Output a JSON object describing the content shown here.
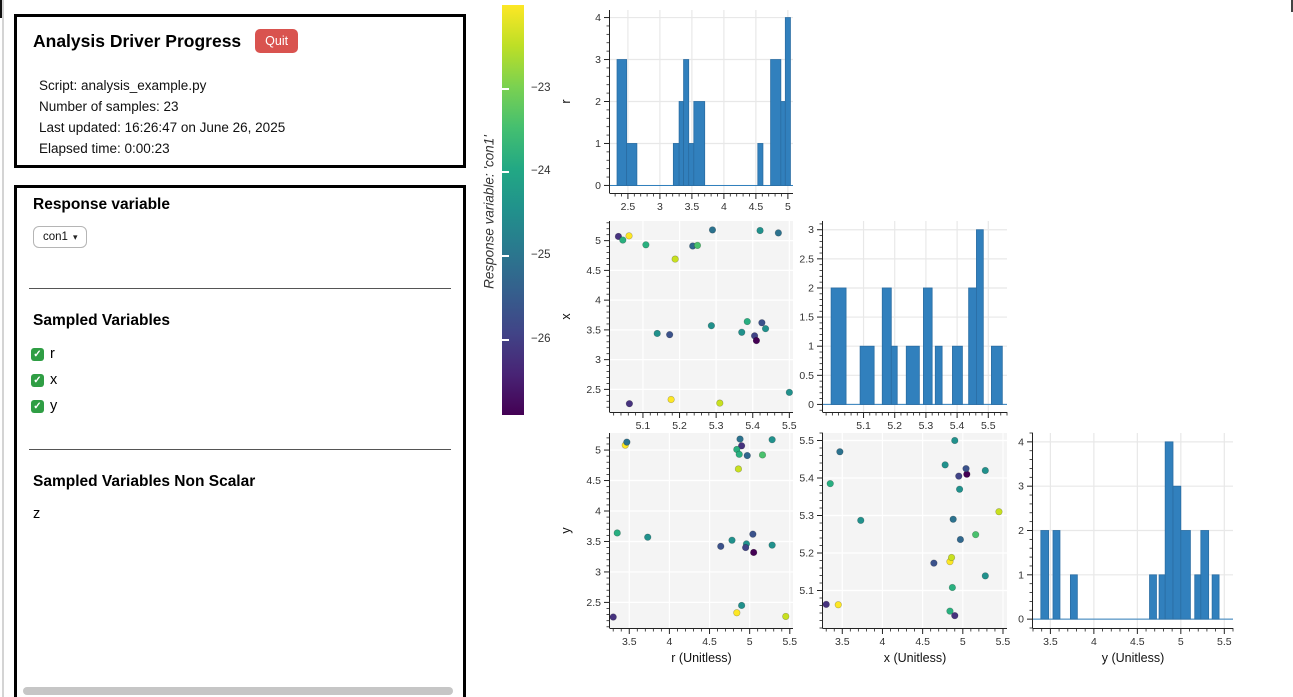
{
  "progress_panel": {
    "title": "Analysis Driver Progress",
    "quit_label": "Quit",
    "info_lines": [
      "Script: analysis_example.py",
      "Number of samples: 23",
      "Last updated: 16:26:47 on June 26, 2025",
      "Elapsed time: 0:00:23"
    ]
  },
  "controls_panel": {
    "response_variable_heading": "Response variable",
    "response_variable_selected": "con1",
    "sampled_variables_heading": "Sampled Variables",
    "sampled_variables": [
      {
        "label": "r",
        "checked": true
      },
      {
        "label": "x",
        "checked": true
      },
      {
        "label": "y",
        "checked": true
      }
    ],
    "non_scalar_heading": "Sampled Variables Non Scalar",
    "non_scalar_variables": [
      "z"
    ]
  },
  "colorbar": {
    "title": "Response variable: 'con1'",
    "colormap": "viridis",
    "vmax": -22.0,
    "vmin": -26.9,
    "tick_values": [
      -23,
      -24,
      -25,
      -26
    ],
    "tick_labels": [
      "−23",
      "−24",
      "−25",
      "−26"
    ],
    "stops": [
      "#fde725",
      "#bddf26",
      "#7ad151",
      "#44bf70",
      "#22a884",
      "#21918c",
      "#2a788e",
      "#355f8d",
      "#414487",
      "#482475",
      "#440154"
    ]
  },
  "style": {
    "bar_fill": "#3180bd",
    "bar_edge": "#2a6da3",
    "hist_bg": "#ffffff",
    "hist_grid": "#e8e8e8",
    "scatter_bg": "#f4f4f4",
    "scatter_grid": "#ffffff",
    "axis_color": "#222222",
    "tick_label_color": "#333333",
    "accent_red": "#d9534f",
    "checkbox_green": "#2f9e44"
  },
  "samples": [
    {
      "r": 5.07,
      "x": 5.033,
      "y": 4.9,
      "con1": -26.2,
      "color": "#46327e"
    },
    {
      "r": 5.01,
      "x": 5.045,
      "y": 4.84,
      "con1": -23.75,
      "color": "#2ab07f"
    },
    {
      "r": 5.08,
      "x": 5.062,
      "y": 3.45,
      "con1": -22.15,
      "color": "#fde725"
    },
    {
      "r": 2.26,
      "x": 5.063,
      "y": 3.3,
      "con1": -26.2,
      "color": "#46327e"
    },
    {
      "r": 4.93,
      "x": 5.108,
      "y": 4.87,
      "con1": -23.75,
      "color": "#2ab07f"
    },
    {
      "r": 3.44,
      "x": 5.139,
      "y": 5.28,
      "con1": -24.45,
      "color": "#21918c"
    },
    {
      "r": 3.42,
      "x": 5.173,
      "y": 4.64,
      "con1": -25.65,
      "color": "#3b528b"
    },
    {
      "r": 2.33,
      "x": 5.177,
      "y": 4.84,
      "con1": -22.15,
      "color": "#fde725"
    },
    {
      "r": 4.69,
      "x": 5.188,
      "y": 4.86,
      "con1": -22.7,
      "color": "#c8e020"
    },
    {
      "r": 4.91,
      "x": 5.236,
      "y": 4.97,
      "con1": -25.3,
      "color": "#31688e"
    },
    {
      "r": 4.92,
      "x": 5.249,
      "y": 5.16,
      "con1": -23.4,
      "color": "#4ac16d"
    },
    {
      "r": 5.18,
      "x": 5.29,
      "y": 4.88,
      "con1": -25.1,
      "color": "#2c728e"
    },
    {
      "r": 3.57,
      "x": 5.287,
      "y": 3.73,
      "con1": -24.45,
      "color": "#21918c"
    },
    {
      "r": 2.27,
      "x": 5.31,
      "y": 5.45,
      "con1": -22.7,
      "color": "#c8e020"
    },
    {
      "r": 3.46,
      "x": 5.37,
      "y": 4.96,
      "con1": -24.45,
      "color": "#21918c"
    },
    {
      "r": 3.64,
      "x": 5.385,
      "y": 3.35,
      "con1": -23.8,
      "color": "#28ae80"
    },
    {
      "r": 3.4,
      "x": 5.405,
      "y": 4.95,
      "con1": -25.85,
      "color": "#414487"
    },
    {
      "r": 3.32,
      "x": 5.41,
      "y": 5.05,
      "con1": -26.85,
      "color": "#440154"
    },
    {
      "r": 5.17,
      "x": 5.42,
      "y": 5.28,
      "con1": -24.45,
      "color": "#21918c"
    },
    {
      "r": 3.62,
      "x": 5.425,
      "y": 5.04,
      "con1": -25.65,
      "color": "#3b528b"
    },
    {
      "r": 3.52,
      "x": 5.435,
      "y": 4.78,
      "con1": -24.45,
      "color": "#21918c"
    },
    {
      "r": 5.13,
      "x": 5.47,
      "y": 3.47,
      "con1": -25.1,
      "color": "#2c728e"
    },
    {
      "r": 2.45,
      "x": 5.5,
      "y": 4.9,
      "con1": -24.45,
      "color": "#21918c"
    }
  ],
  "chart_data": [
    {
      "name": "hist-r",
      "type": "bar",
      "grid": [
        0,
        0
      ],
      "ylabel": "r",
      "x_range": [
        2.22,
        5.08
      ],
      "y_range": [
        -0.18,
        4.18
      ],
      "x_ticks": [
        2.5,
        3,
        3.5,
        4,
        4.5,
        5
      ],
      "y_ticks": [
        0,
        1,
        2,
        3,
        4
      ],
      "x_minor_step": 0.1,
      "y_minor_step": 0.2,
      "bars": [
        [
          2.33,
          2.48,
          3
        ],
        [
          2.48,
          2.64,
          1
        ],
        [
          3.21,
          3.3,
          1
        ],
        [
          3.3,
          3.37,
          2
        ],
        [
          3.37,
          3.45,
          3
        ],
        [
          3.45,
          3.53,
          1
        ],
        [
          3.53,
          3.7,
          2
        ],
        [
          4.53,
          4.61,
          1
        ],
        [
          4.73,
          4.89,
          3
        ],
        [
          4.89,
          4.96,
          2
        ],
        [
          4.96,
          5.04,
          4
        ]
      ]
    },
    {
      "name": "scatter-x-r",
      "type": "scatter",
      "grid": [
        1,
        0
      ],
      "ylabel": "x",
      "x_field": "x",
      "y_field": "r",
      "x_range": [
        5.01,
        5.51
      ],
      "y_range": [
        2.12,
        5.33
      ],
      "x_ticks": [
        5.1,
        5.2,
        5.3,
        5.4,
        5.5
      ],
      "y_ticks": [
        2.5,
        3,
        3.5,
        4,
        4.5,
        5
      ],
      "x_minor_step": 0.02,
      "y_minor_step": 0.1
    },
    {
      "name": "hist-x",
      "type": "bar",
      "grid": [
        1,
        1
      ],
      "x_range": [
        4.97,
        5.56
      ],
      "y_range": [
        -0.13,
        3.15
      ],
      "x_ticks": [
        5.1,
        5.2,
        5.3,
        5.4,
        5.5
      ],
      "y_ticks": [
        0,
        0.5,
        1,
        1.5,
        2,
        2.5,
        3
      ],
      "x_minor_step": 0.02,
      "y_minor_step": 0.1,
      "bars": [
        [
          4.996,
          5.044,
          2
        ],
        [
          5.089,
          5.134,
          1
        ],
        [
          5.16,
          5.189,
          2
        ],
        [
          5.189,
          5.208,
          1
        ],
        [
          5.237,
          5.279,
          1
        ],
        [
          5.292,
          5.32,
          2
        ],
        [
          5.33,
          5.352,
          1
        ],
        [
          5.385,
          5.417,
          1
        ],
        [
          5.437,
          5.462,
          2
        ],
        [
          5.462,
          5.484,
          3
        ],
        [
          5.51,
          5.545,
          1
        ]
      ]
    },
    {
      "name": "scatter-y-r",
      "type": "scatter",
      "grid": [
        2,
        0
      ],
      "ylabel": "y",
      "xlabel": "r (Unitless)",
      "x_field": "y",
      "y_field": "r",
      "x_range": [
        3.26,
        5.54
      ],
      "y_range": [
        2.08,
        5.28
      ],
      "x_ticks": [
        3.5,
        4,
        4.5,
        5,
        5.5
      ],
      "y_ticks": [
        2.5,
        3,
        3.5,
        4,
        4.5,
        5
      ],
      "x_minor_step": 0.1,
      "y_minor_step": 0.1
    },
    {
      "name": "scatter-y-x",
      "type": "scatter",
      "grid": [
        2,
        1
      ],
      "xlabel": "x (Unitless)",
      "x_field": "y",
      "y_field": "x",
      "x_range": [
        3.26,
        5.55
      ],
      "y_range": [
        5.0,
        5.52
      ],
      "x_ticks": [
        3.5,
        4,
        4.5,
        5,
        5.5
      ],
      "y_ticks": [
        5.1,
        5.2,
        5.3,
        5.4,
        5.5
      ],
      "x_minor_step": 0.1,
      "y_minor_step": 0.02
    },
    {
      "name": "hist-y",
      "type": "bar",
      "grid": [
        2,
        2
      ],
      "xlabel": "y (Unitless)",
      "x_range": [
        3.3,
        5.6
      ],
      "y_range": [
        -0.2,
        4.2
      ],
      "x_ticks": [
        3.5,
        4,
        4.5,
        5,
        5.5
      ],
      "y_ticks": [
        0,
        1,
        2,
        3,
        4
      ],
      "x_minor_step": 0.1,
      "y_minor_step": 0.2,
      "bars": [
        [
          3.39,
          3.48,
          2
        ],
        [
          3.53,
          3.61,
          2
        ],
        [
          3.73,
          3.81,
          1
        ],
        [
          4.64,
          4.72,
          1
        ],
        [
          4.75,
          4.82,
          1
        ],
        [
          4.82,
          4.91,
          4
        ],
        [
          4.91,
          5.0,
          3
        ],
        [
          5.0,
          5.11,
          2
        ],
        [
          5.16,
          5.23,
          1
        ],
        [
          5.23,
          5.32,
          2
        ],
        [
          5.36,
          5.44,
          1
        ]
      ]
    }
  ]
}
